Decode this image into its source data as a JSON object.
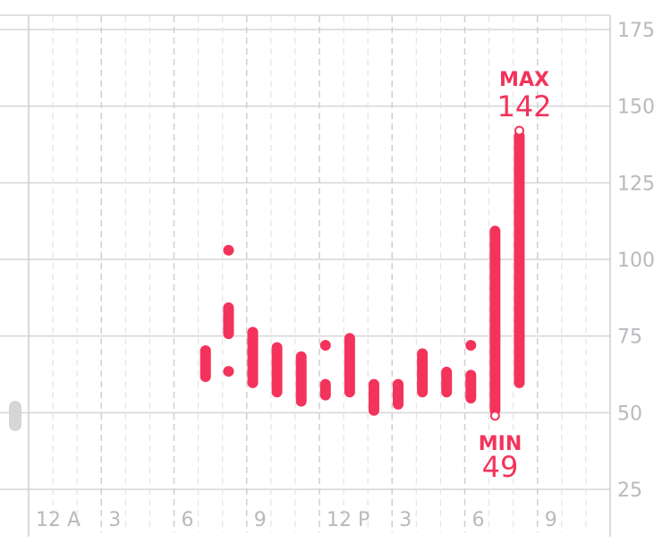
{
  "chart_data": {
    "type": "range-bar",
    "ylim": [
      25,
      175
    ],
    "y_ticks": [
      "175",
      "150",
      "125",
      "100",
      "75",
      "50",
      "25"
    ],
    "x_tick_labels": [
      "12 A",
      "3",
      "6",
      "9",
      "12 P",
      "3",
      "6",
      "9"
    ],
    "x_range_hours": [
      0,
      24
    ],
    "series_color": "#f3335b",
    "ranges": [
      {
        "hour": 7.3,
        "low": 60,
        "high": 72
      },
      {
        "hour": 8.25,
        "low": 102,
        "high": 104
      },
      {
        "hour": 8.25,
        "low": 74,
        "high": 86
      },
      {
        "hour": 8.25,
        "low": 63,
        "high": 64
      },
      {
        "hour": 9.25,
        "low": 58,
        "high": 78
      },
      {
        "hour": 10.25,
        "low": 55,
        "high": 73
      },
      {
        "hour": 11.25,
        "low": 52,
        "high": 70
      },
      {
        "hour": 12.25,
        "low": 71,
        "high": 73
      },
      {
        "hour": 12.25,
        "low": 54,
        "high": 61
      },
      {
        "hour": 13.25,
        "low": 55,
        "high": 76
      },
      {
        "hour": 14.25,
        "low": 49,
        "high": 61
      },
      {
        "hour": 15.25,
        "low": 51,
        "high": 61
      },
      {
        "hour": 16.25,
        "low": 55,
        "high": 71
      },
      {
        "hour": 17.25,
        "low": 55,
        "high": 65
      },
      {
        "hour": 18.25,
        "low": 71,
        "high": 73
      },
      {
        "hour": 18.25,
        "low": 53,
        "high": 64
      },
      {
        "hour": 19.25,
        "low": 49,
        "high": 111
      },
      {
        "hour": 20.25,
        "low": 58,
        "high": 142
      }
    ],
    "annotations": {
      "max": {
        "label": "MAX",
        "value": "142",
        "hour": 20.25
      },
      "min": {
        "label": "MIN",
        "value": "49",
        "hour": 19.25
      }
    }
  }
}
